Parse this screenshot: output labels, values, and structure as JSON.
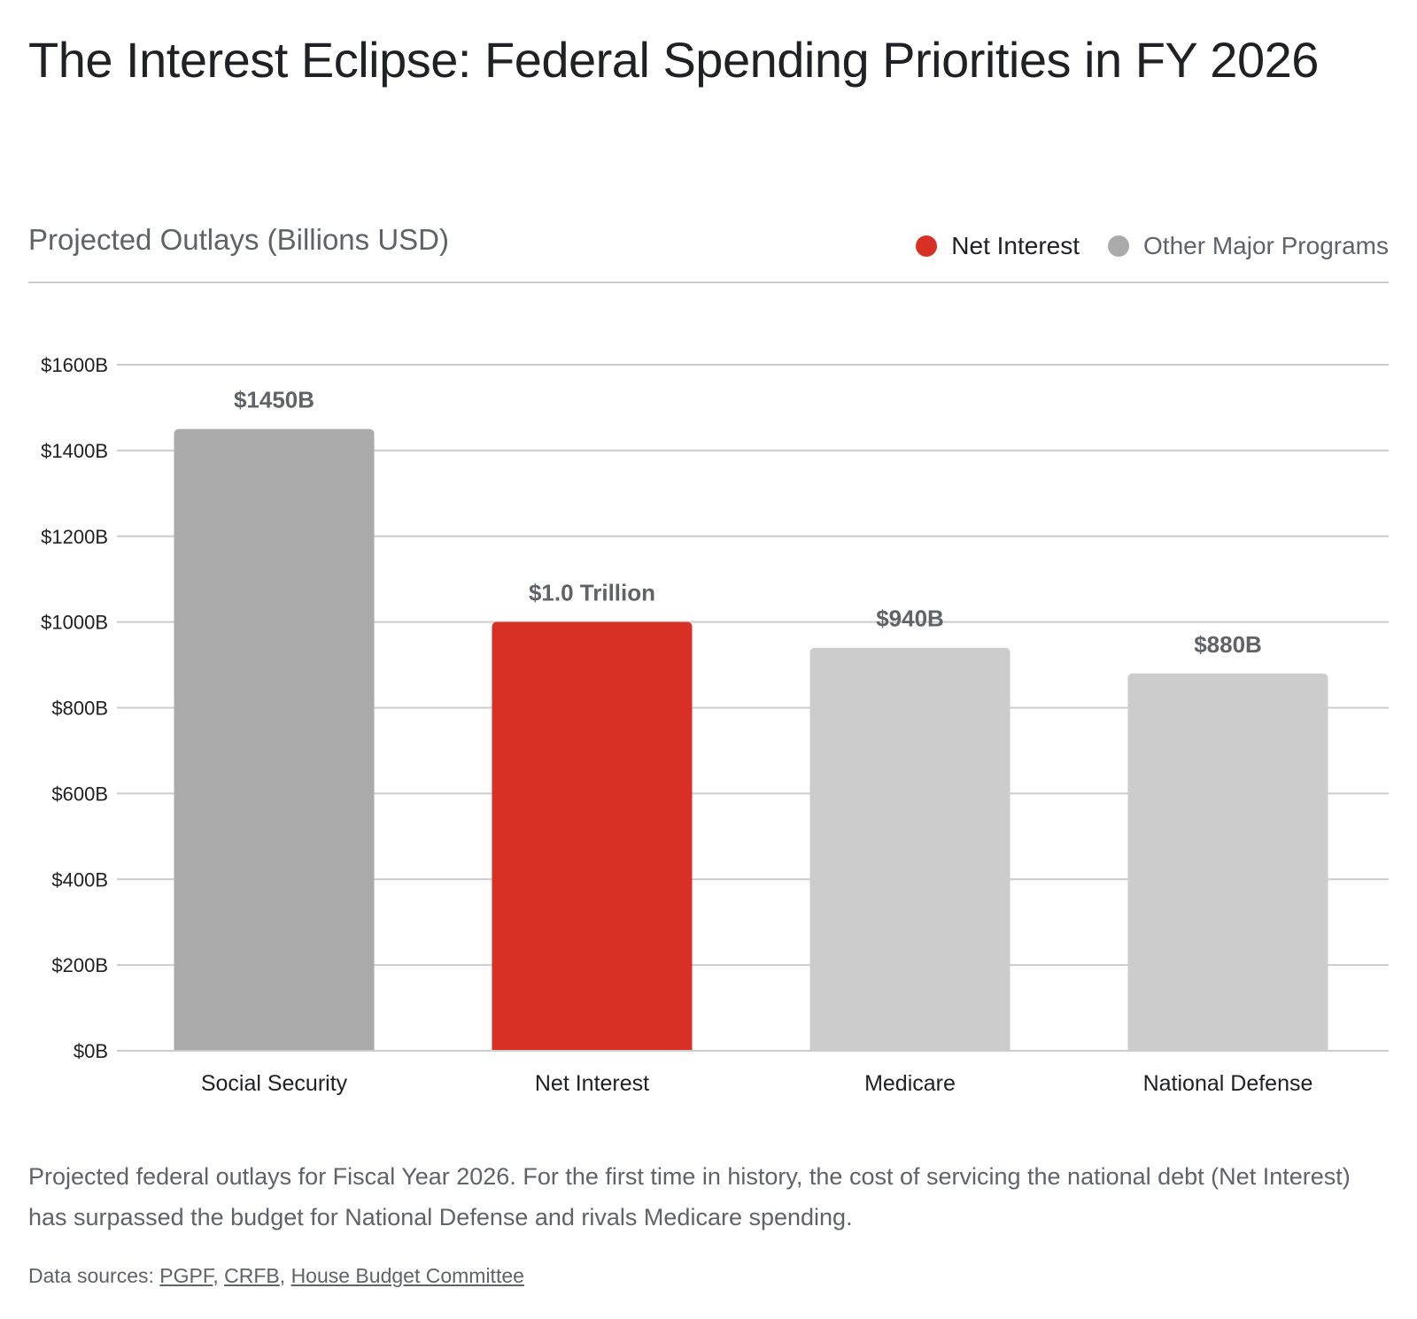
{
  "title": "The Interest Eclipse: Federal Spending Priorities in FY 2026",
  "subtitle": "Projected Outlays (Billions USD)",
  "legend": [
    {
      "label": "Net Interest",
      "color": "#d93025"
    },
    {
      "label": "Other Major Programs",
      "color": "#aaaaaa"
    }
  ],
  "caption": "Projected federal outlays for Fiscal Year 2026. For the first time in history, the cost of servicing the national debt (Net Interest) has surpassed the budget for National Defense and rivals Medicare spending.",
  "sources": {
    "prefix": "Data sources: ",
    "links": [
      "PGPF",
      "CRFB",
      "House Budget Committee"
    ],
    "separator": ", "
  },
  "chart_data": {
    "type": "bar",
    "title": "Projected Outlays (Billions USD)",
    "xlabel": "",
    "ylabel": "",
    "categories": [
      "Social Security",
      "Net Interest",
      "Medicare",
      "National Defense"
    ],
    "values": [
      1450,
      1000,
      940,
      880
    ],
    "data_labels": [
      "$1450B",
      "$1.0 Trillion",
      "$940B",
      "$880B"
    ],
    "bar_colors": [
      "#aaaaaa",
      "#d93025",
      "#cccccc",
      "#cccccc"
    ],
    "ylim": [
      0,
      1600
    ],
    "yticks": [
      0,
      200,
      400,
      600,
      800,
      1000,
      1200,
      1400,
      1600
    ],
    "ytick_labels": [
      "$0B",
      "$200B",
      "$400B",
      "$600B",
      "$800B",
      "$1000B",
      "$1200B",
      "$1400B",
      "$1600B"
    ],
    "grid": true,
    "legend_position": "top-right",
    "legend": [
      "Net Interest",
      "Other Major Programs"
    ]
  }
}
